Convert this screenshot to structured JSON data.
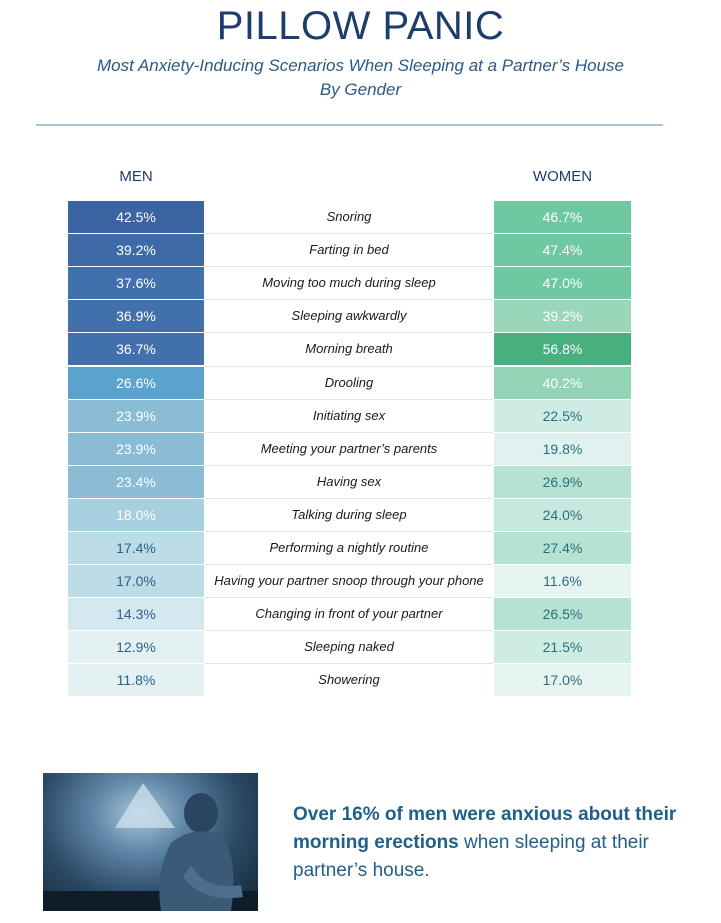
{
  "header": {
    "title": "PILLOW PANIC",
    "subtitle_line1": "Most Anxiety-Inducing Scenarios When Sleeping at a Partner’s House",
    "subtitle_line2": "By Gender"
  },
  "chart_data": {
    "type": "table",
    "title": "PILLOW PANIC",
    "subtitle": "Most Anxiety-Inducing Scenarios When Sleeping at a Partner’s House By Gender",
    "columns": [
      "MEN",
      "WOMEN"
    ],
    "categories": [
      "Snoring",
      "Farting in bed",
      "Moving too much during sleep",
      "Sleeping awkwardly",
      "Morning breath",
      "Drooling",
      "Initiating sex",
      "Meeting your partner’s parents",
      "Having sex",
      "Talking during sleep",
      "Performing a nightly routine",
      "Having your partner snoop through your phone",
      "Changing in front of your partner",
      "Sleeping naked",
      "Showering"
    ],
    "series": [
      {
        "name": "MEN",
        "values": [
          42.5,
          39.2,
          37.6,
          36.9,
          36.7,
          26.6,
          23.9,
          23.9,
          23.4,
          18.0,
          17.4,
          17.0,
          14.3,
          12.9,
          11.8
        ],
        "labels": [
          "42.5%",
          "39.2%",
          "37.6%",
          "36.9%",
          "36.7%",
          "26.6%",
          "23.9%",
          "23.9%",
          "23.4%",
          "18.0%",
          "17.4%",
          "17.0%",
          "14.3%",
          "12.9%",
          "11.8%"
        ]
      },
      {
        "name": "WOMEN",
        "values": [
          46.7,
          47.4,
          47.0,
          39.2,
          56.8,
          40.2,
          22.5,
          19.8,
          26.9,
          24.0,
          27.4,
          11.6,
          26.5,
          21.5,
          17.0
        ],
        "labels": [
          "46.7%",
          "47.4%",
          "47.0%",
          "39.2%",
          "56.8%",
          "40.2%",
          "22.5%",
          "19.8%",
          "26.9%",
          "24.0%",
          "27.4%",
          "11.6%",
          "26.5%",
          "21.5%",
          "17.0%"
        ]
      }
    ],
    "colors": {
      "men": [
        "#3c63a2",
        "#3f6aa8",
        "#4270ad",
        "#4270ad",
        "#4270ad",
        "#5ba2cd",
        "#8bbcd6",
        "#8bbcd6",
        "#8bbcd6",
        "#a6cfe0",
        "#bcdce8",
        "#bcdce8",
        "#d4e9ef",
        "#e3f1f3",
        "#e3f1f3"
      ],
      "women": [
        "#6ec9a2",
        "#6ec9a2",
        "#6ec9a2",
        "#9ad6ba",
        "#48b07f",
        "#93d3b6",
        "#cfece4",
        "#e0f2ef",
        "#b6e2d4",
        "#c7e8df",
        "#b6e2d4",
        "#e6f4f2",
        "#b6e2d4",
        "#cfece4",
        "#e6f4f2"
      ]
    }
  },
  "callout": {
    "bold_text": "Over 16% of men were anxious about their morning erections",
    "rest_text": " when sleeping at their partner’s house."
  }
}
